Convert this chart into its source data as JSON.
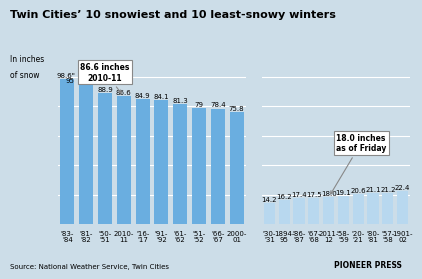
{
  "title": "Twin Cities’ 10 snowiest and 10 least-snowy winters",
  "ylabel_line1": "In inches",
  "ylabel_line2": "of snow",
  "snowy_labels": [
    "'83-\n'84",
    "'81-\n'82",
    "'50-\n'51",
    "2010-\n11",
    "'16-\n'17",
    "'91-\n'92",
    "'61-\n'62",
    "'51-\n'52",
    "'66-\n'67",
    "2000-\n01"
  ],
  "snowy_values": [
    98.6,
    95,
    88.9,
    86.6,
    84.9,
    84.1,
    81.3,
    79,
    78.4,
    75.8
  ],
  "least_labels": [
    "'30-\n'31",
    "1894-\n95",
    "'86-\n'87",
    "'67-\n'68",
    "2011-\n12",
    "'58-\n'59",
    "'20-\n'21",
    "'80-\n'81",
    "'57-\n'58",
    "1901-\n02"
  ],
  "least_values": [
    14.2,
    16.2,
    17.4,
    17.5,
    18.0,
    19.1,
    20.6,
    21.1,
    21.2,
    22.4
  ],
  "snowy_bar_color": "#6aaee0",
  "least_bar_color": "#b8d8ef",
  "bg_color": "#ccdde8",
  "grid_color": "#ffffff",
  "source_text": "Source: National Weather Service, Twin Cities",
  "credit_text": "PIONEER PRESS",
  "ylim": [
    0,
    108
  ],
  "yticks": [
    20,
    40,
    60,
    80,
    100
  ],
  "snowy_top_label1": "98.6\"",
  "snowy_top_label2": "95",
  "annot_snowy_text": "86.6 inches\n2010-11",
  "annot_least_text": "18.0 inches\nas of Friday"
}
